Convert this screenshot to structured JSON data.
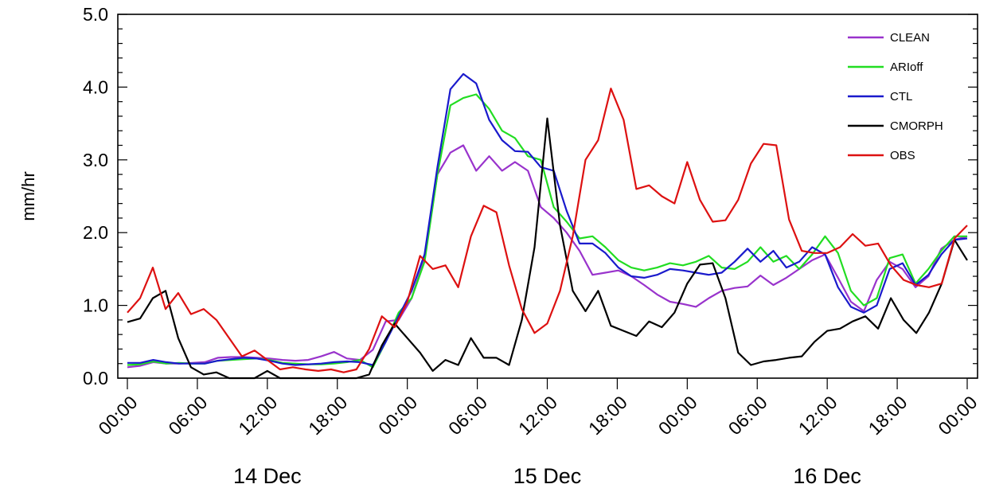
{
  "chart_data": {
    "type": "line",
    "title": "",
    "xlabel": "",
    "ylabel": "mm/hr",
    "ylim": [
      0,
      5
    ],
    "xlim_hours": [
      0,
      72
    ],
    "y_ticks": [
      "0.0",
      "1.0",
      "2.0",
      "3.0",
      "4.0",
      "5.0"
    ],
    "x_ticks": [
      "00:00",
      "06:00",
      "12:00",
      "18:00",
      "00:00",
      "06:00",
      "12:00",
      "18:00",
      "00:00",
      "06:00",
      "12:00",
      "18:00",
      "00:00"
    ],
    "day_labels": [
      "14 Dec",
      "15 Dec",
      "16 Dec"
    ],
    "legend_position": "top-right",
    "grid": false,
    "x_step_hours": 0.6,
    "series": [
      {
        "name": "CLEAN",
        "color": "#9933cc",
        "values": [
          0.15,
          0.17,
          0.22,
          0.2,
          0.2,
          0.21,
          0.22,
          0.28,
          0.29,
          0.29,
          0.28,
          0.27,
          0.25,
          0.24,
          0.25,
          0.3,
          0.36,
          0.27,
          0.25,
          0.39,
          0.78,
          0.8,
          1.1,
          1.65,
          2.8,
          3.1,
          3.2,
          2.85,
          3.05,
          2.85,
          2.97,
          2.85,
          2.35,
          2.2,
          2.0,
          1.75,
          1.42,
          1.45,
          1.48,
          1.4,
          1.28,
          1.15,
          1.05,
          1.02,
          0.98,
          1.1,
          1.2,
          1.24,
          1.26,
          1.41,
          1.28,
          1.38,
          1.5,
          1.62,
          1.7,
          1.38,
          1.05,
          0.92,
          1.35,
          1.6,
          1.5,
          1.25,
          1.4,
          1.78,
          1.9,
          1.95
        ]
      },
      {
        "name": "ARIoff",
        "color": "#22dd22",
        "values": [
          0.18,
          0.19,
          0.23,
          0.2,
          0.21,
          0.2,
          0.2,
          0.24,
          0.25,
          0.26,
          0.27,
          0.25,
          0.21,
          0.2,
          0.19,
          0.19,
          0.2,
          0.22,
          0.25,
          0.15,
          0.5,
          0.9,
          1.1,
          1.6,
          2.8,
          3.75,
          3.85,
          3.9,
          3.7,
          3.4,
          3.3,
          3.05,
          3.0,
          2.35,
          2.15,
          1.92,
          1.95,
          1.8,
          1.62,
          1.52,
          1.48,
          1.52,
          1.58,
          1.55,
          1.6,
          1.68,
          1.52,
          1.5,
          1.6,
          1.8,
          1.6,
          1.68,
          1.5,
          1.7,
          1.95,
          1.72,
          1.2,
          1.0,
          1.1,
          1.65,
          1.7,
          1.3,
          1.5,
          1.75,
          1.95,
          1.95
        ]
      },
      {
        "name": "CTL",
        "color": "#1a1acc",
        "values": [
          0.21,
          0.21,
          0.25,
          0.22,
          0.2,
          0.2,
          0.2,
          0.24,
          0.26,
          0.28,
          0.27,
          0.24,
          0.2,
          0.18,
          0.19,
          0.2,
          0.22,
          0.23,
          0.22,
          0.18,
          0.5,
          0.85,
          1.2,
          1.7,
          2.9,
          3.97,
          4.18,
          4.05,
          3.55,
          3.27,
          3.12,
          3.11,
          2.9,
          2.85,
          2.3,
          1.85,
          1.85,
          1.72,
          1.52,
          1.4,
          1.38,
          1.42,
          1.5,
          1.48,
          1.45,
          1.42,
          1.45,
          1.6,
          1.78,
          1.6,
          1.75,
          1.52,
          1.6,
          1.8,
          1.7,
          1.25,
          0.98,
          0.9,
          1.0,
          1.5,
          1.58,
          1.28,
          1.42,
          1.7,
          1.9,
          1.92
        ]
      },
      {
        "name": "CMORPH",
        "color": "#000000",
        "values": [
          0.77,
          0.82,
          1.1,
          1.2,
          0.55,
          0.15,
          0.05,
          0.08,
          0.0,
          0.0,
          0.0,
          0.1,
          0.0,
          0.0,
          0.0,
          0.0,
          0.0,
          0.0,
          0.0,
          0.05,
          0.45,
          0.75,
          0.55,
          0.35,
          0.1,
          0.25,
          0.18,
          0.55,
          0.28,
          0.28,
          0.18,
          0.8,
          1.8,
          3.57,
          2.1,
          1.2,
          0.92,
          1.2,
          0.72,
          0.65,
          0.58,
          0.78,
          0.7,
          0.9,
          1.3,
          1.56,
          1.58,
          1.1,
          0.35,
          0.18,
          0.23,
          0.25,
          0.28,
          0.3,
          0.5,
          0.65,
          0.68,
          0.78,
          0.85,
          0.68,
          1.1,
          0.8,
          0.62,
          0.9,
          1.3,
          1.9,
          1.62
        ]
      },
      {
        "name": "OBS",
        "color": "#dd1111",
        "values": [
          0.9,
          1.1,
          1.52,
          0.95,
          1.17,
          0.88,
          0.95,
          0.8,
          0.55,
          0.3,
          0.38,
          0.25,
          0.12,
          0.15,
          0.12,
          0.1,
          0.12,
          0.08,
          0.12,
          0.4,
          0.85,
          0.7,
          1.05,
          1.68,
          1.5,
          1.55,
          1.25,
          1.95,
          2.37,
          2.28,
          1.55,
          0.95,
          0.62,
          0.75,
          1.2,
          1.95,
          3.0,
          3.27,
          3.98,
          3.55,
          2.6,
          2.65,
          2.5,
          2.4,
          2.97,
          2.45,
          2.15,
          2.17,
          2.45,
          2.95,
          3.22,
          3.2,
          2.18,
          1.75,
          1.72,
          1.72,
          1.8,
          1.98,
          1.82,
          1.85,
          1.55,
          1.35,
          1.28,
          1.25,
          1.3,
          1.92,
          2.1
        ]
      }
    ]
  }
}
